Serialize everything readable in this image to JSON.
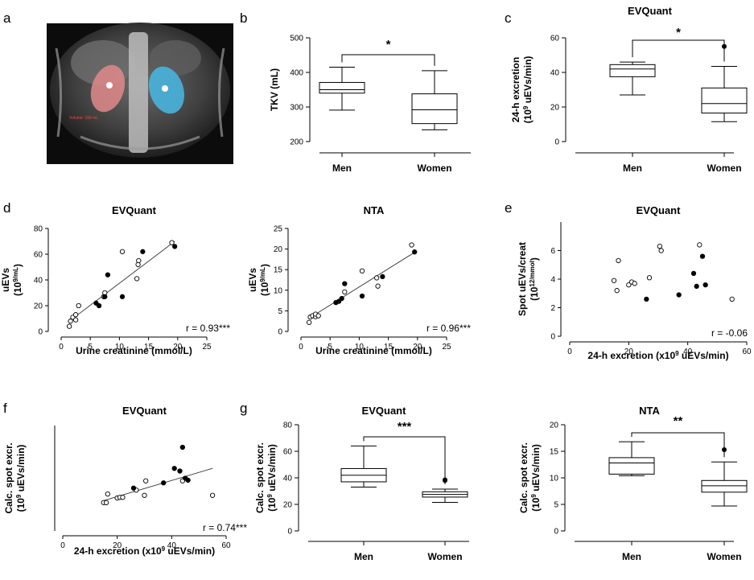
{
  "panel_labels": [
    "a",
    "b",
    "c",
    "d",
    "e",
    "f",
    "g"
  ],
  "image_panel": {
    "label": "a",
    "annotation": "Volume: 158 mL"
  },
  "chart_data": [
    {
      "id": "b",
      "type": "box",
      "title": "",
      "xlabel": "",
      "ylabel": "TKV (mL)",
      "ylim": [
        200,
        500
      ],
      "yticks": [
        200,
        300,
        400,
        500
      ],
      "categories": [
        "Men",
        "Women"
      ],
      "boxes": [
        {
          "min": 291,
          "q1": 340,
          "median": 350,
          "q3": 371,
          "max": 415,
          "outliers": []
        },
        {
          "min": 234,
          "q1": 252,
          "median": 292,
          "q3": 338,
          "max": 405,
          "outliers": []
        }
      ],
      "significance": "*"
    },
    {
      "id": "c",
      "type": "box",
      "title": "EVQuant",
      "xlabel": "",
      "ylabel_lines": [
        "24-h excretion",
        "(10^9 uEVs/min)"
      ],
      "ylim": [
        0,
        60
      ],
      "yticks": [
        0,
        20,
        40,
        60
      ],
      "categories": [
        "Men",
        "Women"
      ],
      "boxes": [
        {
          "min": 27,
          "q1": 37.5,
          "median": 42,
          "q3": 44.5,
          "max": 46,
          "outliers": []
        },
        {
          "min": 11.5,
          "q1": 16.5,
          "median": 22,
          "q3": 31,
          "max": 43.5,
          "outliers": [
            55
          ]
        }
      ],
      "significance": "*"
    },
    {
      "id": "d1",
      "type": "scatter",
      "title": "EVQuant",
      "xlabel": "Urine creatinine (mmol/L)",
      "ylabel_lines": [
        "uEVs",
        "(10^9/mL)"
      ],
      "xlim": [
        0,
        25
      ],
      "xticks": [
        0,
        5,
        10,
        15,
        20,
        25
      ],
      "ylim": [
        0,
        80
      ],
      "yticks": [
        0,
        20,
        40,
        60,
        80
      ],
      "series": [
        {
          "name": "",
          "marker": "open",
          "points": [
            [
              1.4,
              4
            ],
            [
              1.6,
              8
            ],
            [
              2.0,
              11
            ],
            [
              2.5,
              9
            ],
            [
              2.5,
              13
            ],
            [
              3.0,
              20
            ],
            [
              7.3,
              27
            ],
            [
              7.5,
              30
            ],
            [
              10.5,
              62
            ],
            [
              13.0,
              41
            ],
            [
              13.2,
              52
            ],
            [
              13.3,
              55
            ],
            [
              19.0,
              69
            ]
          ]
        },
        {
          "name": "",
          "marker": "filled",
          "points": [
            [
              6.0,
              22
            ],
            [
              6.5,
              20
            ],
            [
              7.5,
              27
            ],
            [
              8.0,
              44
            ],
            [
              10.5,
              27
            ],
            [
              14.0,
              62
            ],
            [
              19.5,
              66
            ]
          ]
        }
      ],
      "fit": [
        [
          1.4,
          8
        ],
        [
          19.5,
          70
        ]
      ],
      "annotation": "r = 0.93***"
    },
    {
      "id": "d2",
      "type": "scatter",
      "title": "NTA",
      "xlabel": "Urine creatinine (mmol/L)",
      "ylabel_lines": [
        "uEVs",
        "(10^9/mL)"
      ],
      "xlim": [
        0,
        25
      ],
      "xticks": [
        0,
        5,
        10,
        15,
        20,
        25
      ],
      "ylim": [
        0,
        25
      ],
      "yticks": [
        0,
        5,
        10,
        15,
        20,
        25
      ],
      "series": [
        {
          "name": "",
          "marker": "open",
          "points": [
            [
              1.4,
              2.2
            ],
            [
              1.6,
              3.5
            ],
            [
              2.0,
              3.8
            ],
            [
              2.5,
              3.6
            ],
            [
              2.5,
              4.2
            ],
            [
              3.0,
              3.8
            ],
            [
              7.5,
              9.6
            ],
            [
              10.5,
              14.7
            ],
            [
              13.0,
              13.0
            ],
            [
              13.2,
              11.0
            ],
            [
              19.0,
              21.0
            ]
          ]
        },
        {
          "name": "",
          "marker": "filled",
          "points": [
            [
              6.0,
              7.0
            ],
            [
              6.5,
              7.3
            ],
            [
              7.0,
              8.0
            ],
            [
              7.5,
              11.6
            ],
            [
              10.5,
              8.6
            ],
            [
              14.0,
              13.3
            ],
            [
              19.5,
              19.3
            ]
          ]
        }
      ],
      "fit": [
        [
          1.4,
          3.2
        ],
        [
          19.5,
          19.2
        ]
      ],
      "annotation": "r = 0.96***"
    },
    {
      "id": "e",
      "type": "scatter",
      "title": "EVQuant",
      "xlabel": "24-h excretion (x10^9 uEVs/min)",
      "ylabel_lines": [
        "Spot uEVs/creat",
        "(10^12/mmol)"
      ],
      "xlim": [
        0,
        60
      ],
      "xticks": [
        0,
        20,
        40,
        60
      ],
      "ylim": [
        0,
        8
      ],
      "yticks": [
        0,
        2,
        4,
        6
      ],
      "series": [
        {
          "name": "",
          "marker": "open",
          "points": [
            [
              15,
              3.9
            ],
            [
              16,
              3.2
            ],
            [
              16.5,
              5.3
            ],
            [
              20,
              3.6
            ],
            [
              21,
              3.8
            ],
            [
              22,
              3.7
            ],
            [
              27,
              4.1
            ],
            [
              30.5,
              6.3
            ],
            [
              31,
              6.0
            ],
            [
              44,
              6.4
            ],
            [
              55,
              2.6
            ]
          ]
        },
        {
          "name": "",
          "marker": "filled",
          "points": [
            [
              26,
              2.6
            ],
            [
              37,
              2.9
            ],
            [
              42,
              4.4
            ],
            [
              43,
              3.5
            ],
            [
              45,
              5.6
            ],
            [
              46,
              3.6
            ]
          ]
        }
      ],
      "annotation": "r = -0.06"
    },
    {
      "id": "f",
      "type": "scatter",
      "title": "EVQuant",
      "xlabel": "24-h excretion (x10^9 uEVs/min)",
      "ylabel_lines": [
        "Calc. spot excr.",
        "(10^9 uEVs/min)"
      ],
      "xlim": [
        0,
        60
      ],
      "xticks": [
        0,
        20,
        40,
        60
      ],
      "ylim": [
        0,
        80
      ],
      "yticks": [],
      "series": [
        {
          "name": "",
          "marker": "open",
          "points": [
            [
              15,
              21.5
            ],
            [
              16,
              21.5
            ],
            [
              16.5,
              28
            ],
            [
              20,
              25
            ],
            [
              21,
              25.5
            ],
            [
              22,
              25.5
            ],
            [
              27,
              31
            ],
            [
              30,
              27
            ],
            [
              30.5,
              38
            ],
            [
              44,
              38
            ],
            [
              55,
              27
            ]
          ]
        },
        {
          "name": "",
          "marker": "filled",
          "points": [
            [
              26,
              32.5
            ],
            [
              37,
              36.5
            ],
            [
              41,
              47.5
            ],
            [
              43,
              45.5
            ],
            [
              44,
              63.5
            ],
            [
              45,
              40
            ],
            [
              46,
              38.5
            ]
          ]
        }
      ],
      "fit": [
        [
          15,
          23
        ],
        [
          55,
          47.5
        ]
      ],
      "annotation": "r = 0.74***"
    },
    {
      "id": "g1",
      "type": "box",
      "title": "EVQuant",
      "xlabel": "",
      "ylabel_lines": [
        "Calc. spot excr.",
        "(10^9 uEVs/min)"
      ],
      "ylim": [
        0,
        80
      ],
      "yticks": [
        0,
        20,
        40,
        60,
        80
      ],
      "categories": [
        "Men",
        "Women"
      ],
      "boxes": [
        {
          "min": 33,
          "q1": 37,
          "median": 42,
          "q3": 47,
          "max": 64,
          "outliers": []
        },
        {
          "min": 21.5,
          "q1": 25.5,
          "median": 27.5,
          "q3": 29.5,
          "max": 31.5,
          "outliers": [
            38,
            38.5
          ]
        }
      ],
      "significance": "***"
    },
    {
      "id": "g2",
      "type": "box",
      "title": "NTA",
      "xlabel": "",
      "ylabel_lines": [
        "Calc. spot excr.",
        "(10^9 uEVs/min)"
      ],
      "ylim": [
        0,
        20
      ],
      "yticks": [
        0,
        5,
        10,
        15,
        20
      ],
      "categories": [
        "Men",
        "Women"
      ],
      "boxes": [
        {
          "min": 10.4,
          "q1": 10.7,
          "median": 12.8,
          "q3": 13.8,
          "max": 16.8,
          "outliers": []
        },
        {
          "min": 4.7,
          "q1": 7.3,
          "median": 8.5,
          "q3": 9.5,
          "max": 13.0,
          "outliers": [
            15.3
          ]
        }
      ],
      "significance": "**"
    }
  ]
}
